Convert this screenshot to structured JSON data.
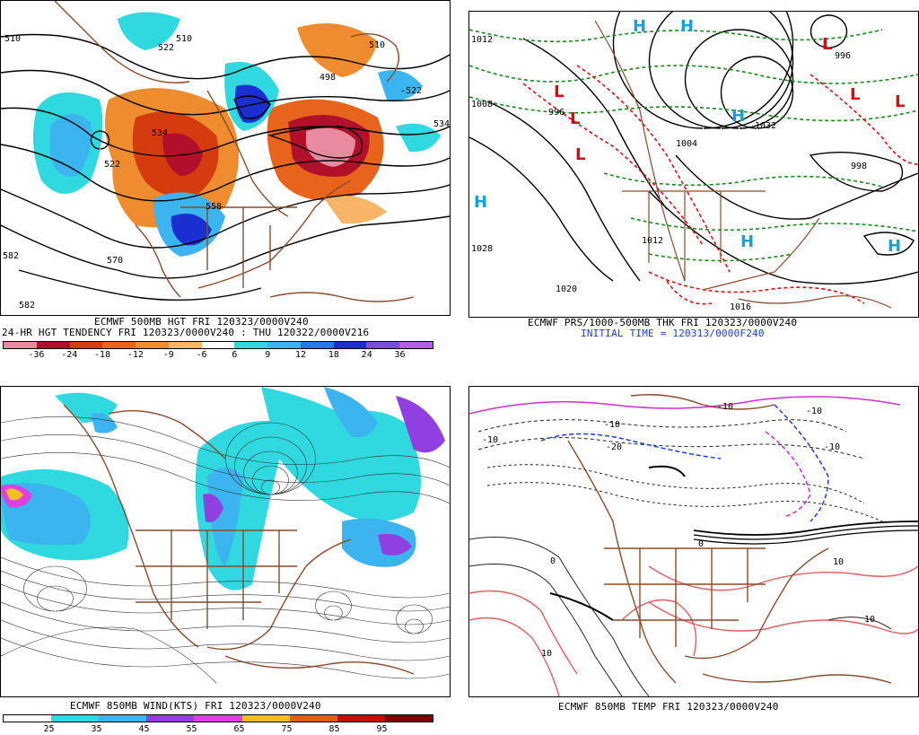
{
  "panels": {
    "top_left": {
      "line1": "ECMWF 500MB HGT FRI 120323/0000V240",
      "line2": "24-HR HGT TENDENCY FRI 120323/0000V240 : THU 120322/0000V216",
      "contour_labels": [
        "510",
        "522",
        "510",
        "498",
        "510",
        "-522",
        "522",
        "534",
        "534",
        "558",
        "570",
        "582",
        "582"
      ],
      "colorbar": {
        "labels": [
          "-36",
          "-24",
          "-18",
          "-12",
          "-9",
          "-6",
          "6",
          "9",
          "12",
          "18",
          "24",
          "36"
        ],
        "colors": [
          "#e88aa0",
          "#b0102a",
          "#d43c10",
          "#e8641c",
          "#f08c30",
          "#f8b468",
          "#ffffff",
          "#30d8e0",
          "#3cb4f0",
          "#2a78e8",
          "#1a2fd0",
          "#7a4fd8",
          "#b060e0"
        ]
      }
    },
    "top_right": {
      "line1": "ECMWF PRS/1000-500MB THK FRI 120323/0000V240",
      "line2": "INITIAL TIME = 120313/0000F240",
      "highs": [
        "H",
        "H",
        "H",
        "H",
        "H",
        "H"
      ],
      "lows": [
        "L",
        "L",
        "L",
        "L",
        "L",
        "L"
      ],
      "contour_labels": [
        "1012",
        "1008",
        "996",
        "1004",
        "1032",
        "1028",
        "1020",
        "1012",
        "998",
        "996",
        "1016"
      ]
    },
    "bottom_left": {
      "line1": "ECMWF 850MB WIND(KTS) FRI 120323/0000V240",
      "colorbar": {
        "labels": [
          "25",
          "35",
          "45",
          "55",
          "65",
          "75",
          "85",
          "95"
        ],
        "colors": [
          "#ffffff",
          "#30d8e0",
          "#3cb4f0",
          "#9040e0",
          "#e040e0",
          "#f0c020",
          "#e06010",
          "#c01010",
          "#800000"
        ]
      }
    },
    "bottom_right": {
      "line1": "ECMWF 850MB TEMP FRI 120323/0000V240",
      "contour_labels": [
        "-10",
        "-10",
        "-10",
        "-10",
        "-10",
        "-20",
        "0",
        "0",
        "10",
        "10",
        "10"
      ]
    }
  },
  "colors": {
    "coast": "#8b4a2b",
    "contour": "#000000",
    "thickness_cold": "#1a8a1a",
    "thickness_warm": "#e01010",
    "high": "#1aa0d8",
    "low": "#d01010"
  }
}
